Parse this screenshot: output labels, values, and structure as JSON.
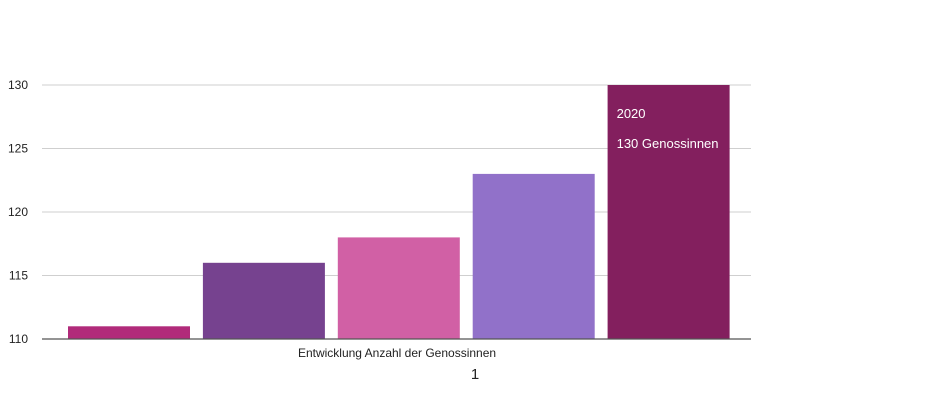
{
  "chart_data": {
    "type": "bar",
    "series": [
      {
        "values": [
          111,
          116,
          118,
          123,
          130
        ],
        "colors": [
          "#b12a7a",
          "#76428f",
          "#d160a5",
          "#9171c9",
          "#831f5e"
        ]
      }
    ],
    "xlabel": "Entwicklung Anzahl der Genossinnen",
    "category_label": "1",
    "yticks": [
      110,
      115,
      120,
      125,
      130
    ],
    "ylim": [
      110,
      130
    ],
    "grid": true,
    "annotation": {
      "year": "2020",
      "text": "130 Genossinnen"
    }
  }
}
